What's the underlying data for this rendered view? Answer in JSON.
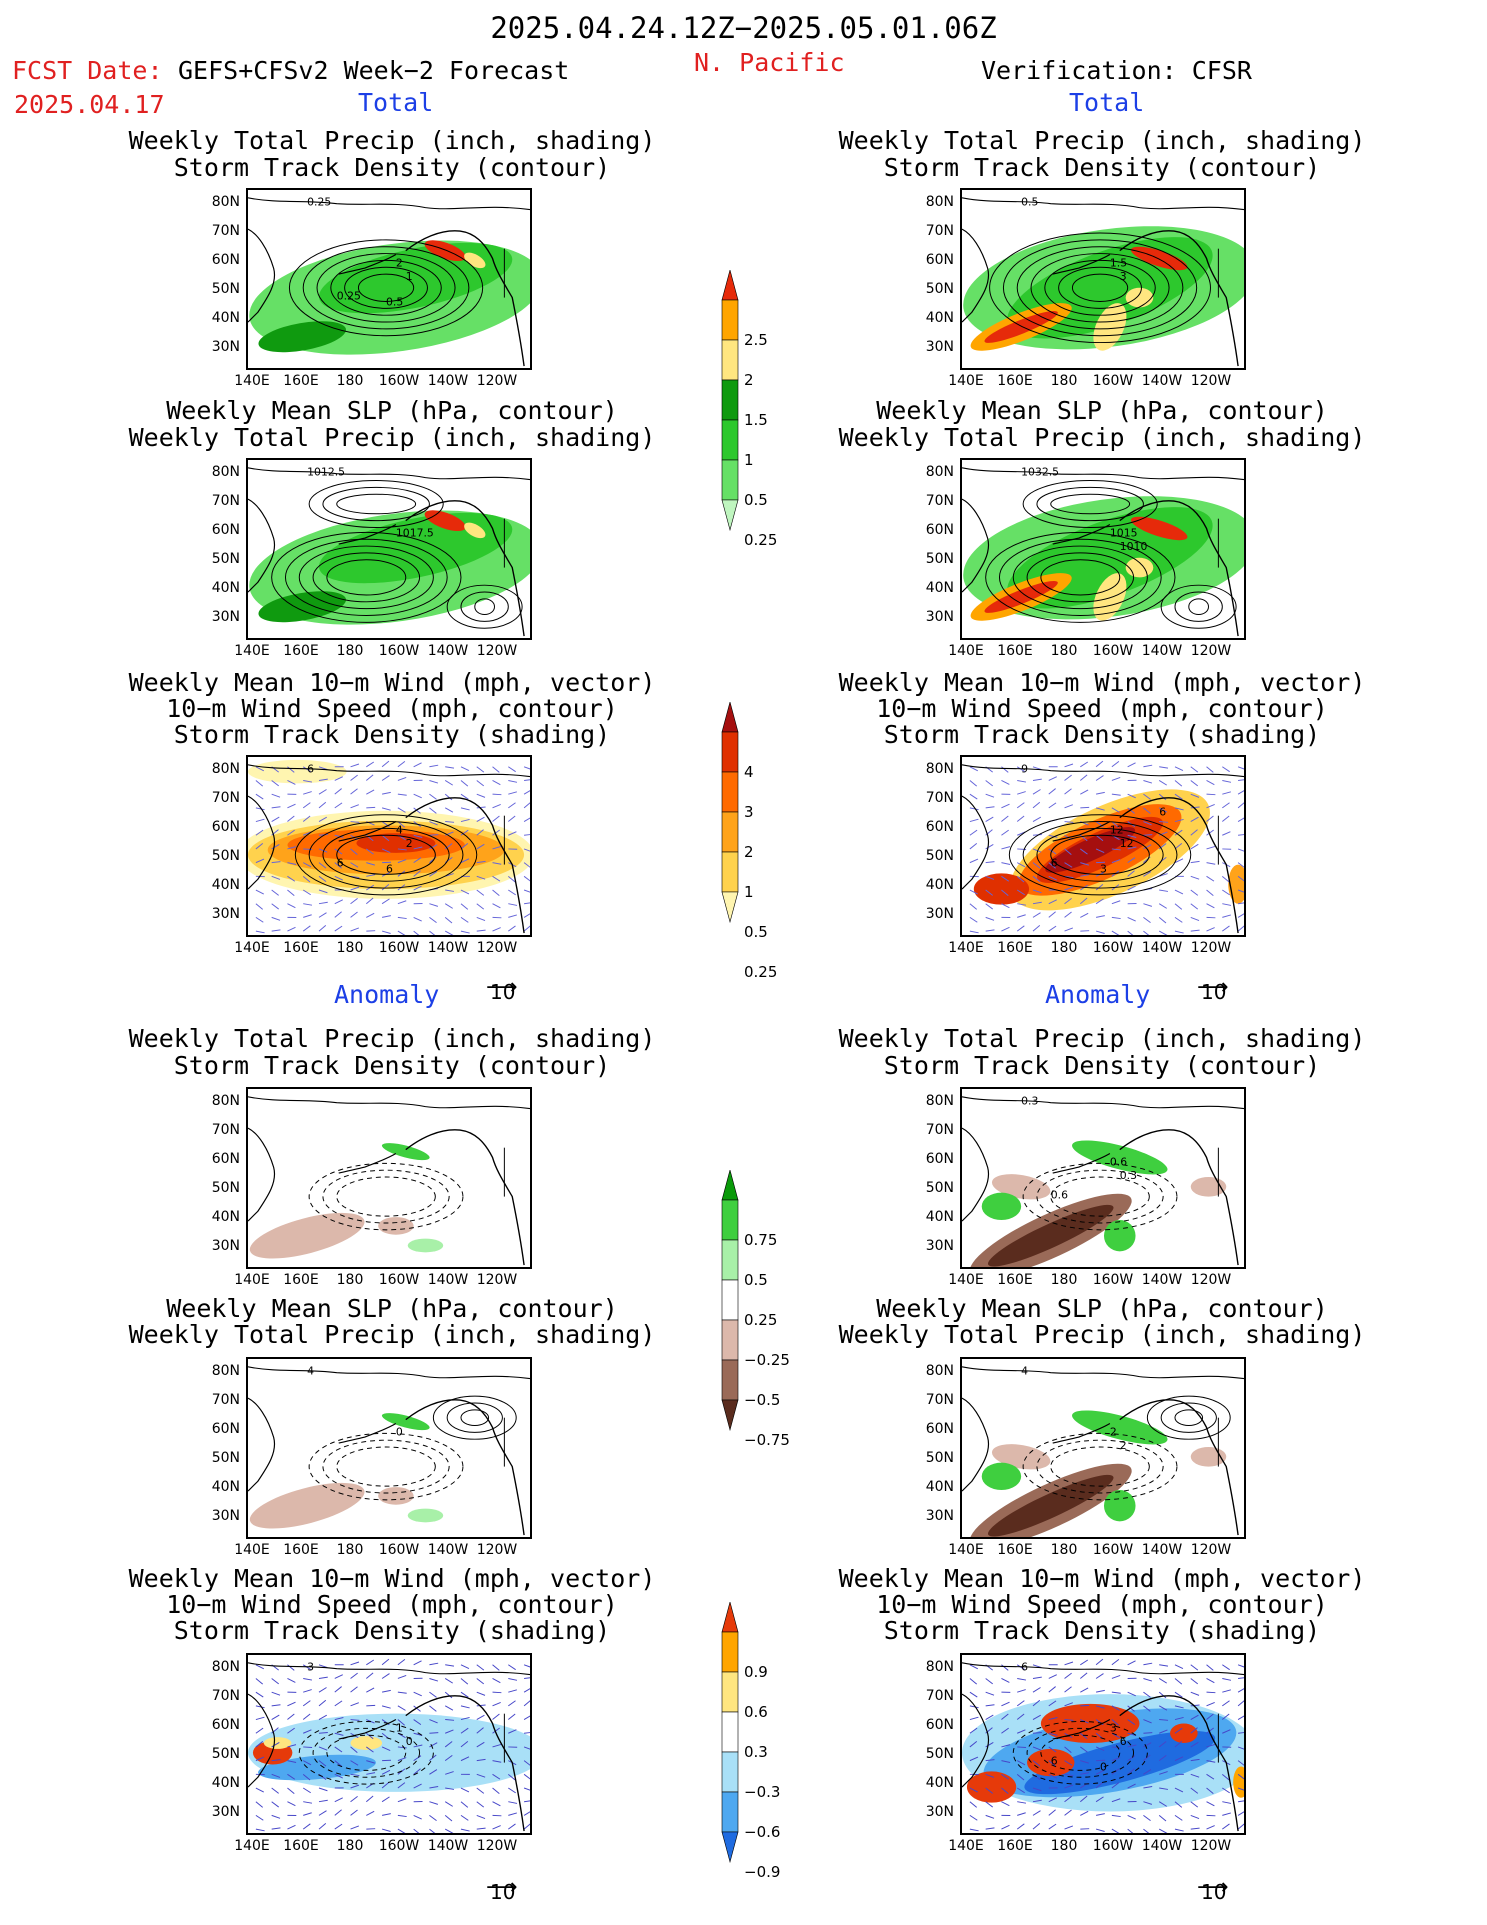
{
  "header": {
    "date_range": "2025.04.24.12Z−2025.05.01.06Z",
    "fcst_date_label": "FCST Date:",
    "fcst_date": "2025.04.17",
    "left_title": "GEFS+CFSv2 Week−2 Forecast",
    "region": "N. Pacific",
    "right_title": "Verification: CFSR"
  },
  "sections": {
    "total": "Total",
    "anomaly": "Anomaly"
  },
  "panel_titles": {
    "precip_storm": [
      "Weekly Total Precip (inch, shading)",
      "Storm Track Density (contour)"
    ],
    "slp_precip": [
      "Weekly Mean SLP (hPa, contour)",
      "Weekly Total Precip (inch, shading)"
    ],
    "wind_storm": [
      "Weekly Mean 10−m Wind (mph, vector)",
      "10−m Wind Speed (mph, contour)",
      "Storm Track Density (shading)"
    ]
  },
  "axes": {
    "lat": [
      "80N",
      "70N",
      "60N",
      "50N",
      "40N",
      "30N"
    ],
    "lon": [
      "140E",
      "160E",
      "180",
      "160W",
      "140W",
      "120W"
    ]
  },
  "vector_ref": "10",
  "colorbars": {
    "precip": {
      "colors": [
        "#bff5bf",
        "#66e066",
        "#2dc82d",
        "#0f9a0f",
        "#ffe680",
        "#ffa500",
        "#e62a0a"
      ],
      "labels": [
        "0.25",
        "0.5",
        "1",
        "1.5",
        "2",
        "2.5"
      ]
    },
    "storm": {
      "colors": [
        "#fff5b0",
        "#ffd24d",
        "#ffa31a",
        "#ff6a00",
        "#e03000",
        "#a50f0f"
      ],
      "labels": [
        "0.25",
        "0.5",
        "1",
        "2",
        "3",
        "4"
      ]
    },
    "precip_anom": {
      "colors": [
        "#5a2c1e",
        "#9a6a58",
        "#dcb8ab",
        "#ffffff",
        "#a8f0a8",
        "#3fcf3f",
        "#0a9a0a"
      ],
      "labels": [
        "0.75",
        "0.5",
        "0.25",
        "−0.25",
        "−0.5",
        "−0.75"
      ]
    },
    "storm_anom": {
      "colors": [
        "#1f6be0",
        "#4ea8f0",
        "#a9e0f7",
        "#ffffff",
        "#ffe680",
        "#ffa500",
        "#e63a0a"
      ],
      "labels": [
        "0.9",
        "0.6",
        "0.3",
        "−0.3",
        "−0.6",
        "−0.9"
      ]
    }
  },
  "contour_labels": {
    "p1l": [
      "0.25",
      "2",
      "1",
      "0.25",
      "0.5"
    ],
    "p1r": [
      "0.5",
      "1.5",
      "3"
    ],
    "p2l": [
      "1012.5",
      "1017.5"
    ],
    "p2r": [
      "1032.5",
      "1015",
      "1010"
    ],
    "p3l": [
      "6",
      "4",
      "2",
      "6",
      "6"
    ],
    "p3r": [
      "9",
      "12",
      "12",
      "6",
      "3",
      "6"
    ],
    "p4r": [
      "0.3",
      "0.6",
      "0.3",
      "0.6"
    ],
    "p5l": [
      "4",
      "0"
    ],
    "p5r": [
      "4",
      "2",
      "2"
    ],
    "p6l": [
      "3",
      "1",
      "0"
    ],
    "p6r": [
      "6",
      "3",
      "6",
      "6",
      "0"
    ]
  }
}
